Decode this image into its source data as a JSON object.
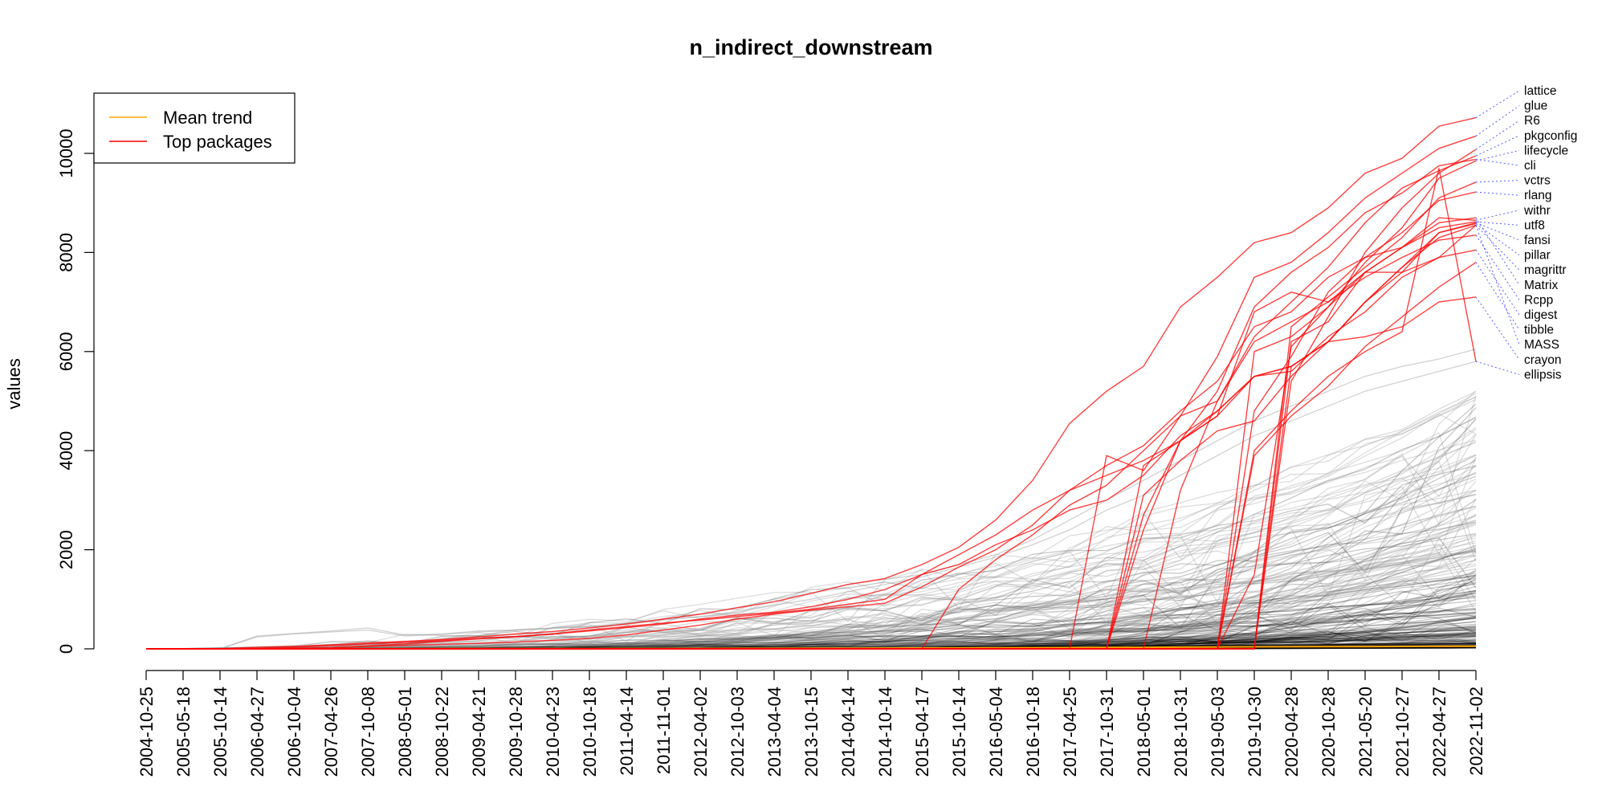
{
  "chart_data": {
    "type": "line",
    "title": "n_indirect_downstream",
    "xlabel": "",
    "ylabel": "values",
    "ylim": [
      0,
      10700
    ],
    "y_ticks": [
      "0",
      "2000",
      "4000",
      "6000",
      "8000",
      "10000"
    ],
    "x": [
      "2004-10-25",
      "2005-05-18",
      "2005-10-14",
      "2006-04-27",
      "2006-10-04",
      "2007-04-26",
      "2007-10-08",
      "2008-05-01",
      "2008-10-22",
      "2009-04-21",
      "2009-10-28",
      "2010-04-23",
      "2010-10-18",
      "2011-04-14",
      "2011-11-01",
      "2012-04-02",
      "2012-10-03",
      "2013-04-04",
      "2013-10-15",
      "2014-04-14",
      "2014-10-14",
      "2015-04-17",
      "2015-10-14",
      "2016-05-04",
      "2016-10-18",
      "2017-04-25",
      "2017-10-31",
      "2018-05-01",
      "2018-10-31",
      "2019-05-03",
      "2019-10-30",
      "2020-04-28",
      "2020-10-28",
      "2021-05-20",
      "2021-10-27",
      "2022-04-27",
      "2022-11-02"
    ],
    "legend": {
      "position": "top-left",
      "entries": [
        {
          "label": "Mean trend",
          "color": "#ffa500"
        },
        {
          "label": "Top packages",
          "color": "#ff0000"
        }
      ]
    },
    "colors": {
      "top": "#ff0000",
      "mean": "#ffa500",
      "background": "#000000",
      "connector": "#4040ff"
    },
    "mean_trend": [
      0,
      0,
      0,
      1,
      1,
      2,
      2,
      2,
      3,
      3,
      4,
      4,
      5,
      6,
      7,
      8,
      9,
      10,
      11,
      13,
      14,
      16,
      18,
      20,
      22,
      25,
      28,
      31,
      34,
      37,
      40,
      42,
      44,
      46,
      48,
      50,
      52
    ],
    "series": [
      {
        "name": "lattice",
        "values": [
          0,
          0,
          0,
          30,
          50,
          80,
          120,
          150,
          190,
          240,
          300,
          350,
          420,
          500,
          600,
          700,
          830,
          950,
          1120,
          1300,
          1420,
          1700,
          2050,
          2600,
          3400,
          4550,
          5200,
          5700,
          6900,
          7500,
          8200,
          8400,
          8900,
          9600,
          9900,
          10550,
          10720
        ]
      },
      {
        "name": "glue",
        "values": [
          0,
          0,
          0,
          0,
          0,
          0,
          0,
          0,
          0,
          0,
          0,
          0,
          0,
          0,
          0,
          0,
          0,
          0,
          0,
          0,
          0,
          0,
          0,
          0,
          0,
          0,
          3900,
          3600,
          4700,
          5900,
          7500,
          7800,
          8400,
          9100,
          9600,
          10100,
          10350
        ]
      },
      {
        "name": "R6",
        "values": [
          0,
          0,
          0,
          0,
          0,
          0,
          0,
          0,
          0,
          0,
          0,
          0,
          0,
          0,
          0,
          0,
          0,
          0,
          0,
          0,
          0,
          0,
          0,
          0,
          0,
          0,
          0,
          0,
          0,
          0,
          0,
          5400,
          6700,
          8000,
          8900,
          9600,
          10080
        ]
      },
      {
        "name": "pkgconfig",
        "values": [
          0,
          0,
          0,
          0,
          0,
          0,
          0,
          0,
          0,
          0,
          0,
          0,
          0,
          0,
          0,
          0,
          0,
          0,
          0,
          0,
          0,
          0,
          0,
          0,
          0,
          0,
          0,
          0,
          3200,
          5000,
          6300,
          7000,
          7700,
          8600,
          9300,
          9650,
          9950
        ]
      },
      {
        "name": "lifecycle",
        "values": [
          0,
          0,
          0,
          0,
          0,
          0,
          0,
          0,
          0,
          0,
          0,
          0,
          0,
          0,
          0,
          0,
          0,
          0,
          0,
          0,
          0,
          0,
          0,
          0,
          0,
          0,
          0,
          0,
          0,
          0,
          1500,
          6100,
          6900,
          7800,
          8500,
          9500,
          9850
        ]
      },
      {
        "name": "cli",
        "values": [
          0,
          0,
          0,
          0,
          0,
          0,
          0,
          0,
          0,
          0,
          0,
          0,
          0,
          0,
          0,
          0,
          0,
          0,
          0,
          0,
          0,
          0,
          0,
          0,
          0,
          0,
          0,
          2700,
          4200,
          5200,
          6900,
          7600,
          8100,
          8800,
          9200,
          9750,
          9880
        ]
      },
      {
        "name": "vctrs",
        "values": [
          0,
          0,
          0,
          0,
          0,
          0,
          0,
          0,
          0,
          0,
          0,
          0,
          0,
          0,
          0,
          0,
          0,
          0,
          0,
          0,
          0,
          0,
          0,
          0,
          0,
          0,
          0,
          0,
          0,
          0,
          0,
          6500,
          7100,
          7700,
          8300,
          9100,
          9420
        ]
      },
      {
        "name": "rlang",
        "values": [
          0,
          0,
          0,
          0,
          0,
          0,
          0,
          0,
          0,
          0,
          0,
          0,
          0,
          0,
          0,
          0,
          0,
          0,
          0,
          0,
          0,
          0,
          0,
          0,
          0,
          0,
          0,
          0,
          0,
          0,
          4800,
          5900,
          7200,
          7900,
          8400,
          9050,
          9220
        ]
      },
      {
        "name": "withr",
        "values": [
          0,
          0,
          0,
          0,
          0,
          0,
          0,
          0,
          0,
          0,
          0,
          0,
          0,
          0,
          0,
          0,
          0,
          0,
          0,
          0,
          0,
          0,
          0,
          0,
          0,
          0,
          0,
          0,
          0,
          0,
          0,
          6200,
          6600,
          7600,
          8100,
          8700,
          8650
        ]
      },
      {
        "name": "utf8",
        "values": [
          0,
          0,
          0,
          0,
          0,
          0,
          0,
          0,
          0,
          0,
          0,
          0,
          0,
          0,
          0,
          0,
          0,
          0,
          0,
          0,
          0,
          0,
          0,
          0,
          0,
          0,
          0,
          0,
          0,
          0,
          6000,
          6300,
          6900,
          7600,
          8100,
          8500,
          8620
        ]
      },
      {
        "name": "fansi",
        "values": [
          0,
          0,
          0,
          0,
          0,
          0,
          0,
          0,
          0,
          0,
          0,
          0,
          0,
          0,
          0,
          0,
          0,
          0,
          0,
          0,
          0,
          0,
          0,
          0,
          0,
          0,
          0,
          0,
          0,
          0,
          0,
          5700,
          6200,
          7000,
          7700,
          8400,
          8600
        ]
      },
      {
        "name": "pillar",
        "values": [
          0,
          0,
          0,
          0,
          0,
          0,
          0,
          0,
          0,
          0,
          0,
          0,
          0,
          0,
          0,
          0,
          0,
          0,
          0,
          0,
          0,
          0,
          0,
          0,
          0,
          0,
          0,
          2400,
          4200,
          4700,
          5500,
          5700,
          6200,
          7000,
          7600,
          8400,
          8580
        ]
      },
      {
        "name": "magrittr",
        "values": [
          0,
          0,
          0,
          0,
          0,
          0,
          0,
          0,
          0,
          0,
          0,
          0,
          0,
          0,
          0,
          0,
          0,
          0,
          0,
          0,
          0,
          0,
          0,
          0,
          0,
          0,
          0,
          3700,
          4200,
          4800,
          5500,
          5700,
          6200,
          7000,
          7700,
          8300,
          8550
        ]
      },
      {
        "name": "Matrix",
        "values": [
          0,
          0,
          0,
          0,
          5,
          20,
          50,
          70,
          90,
          110,
          140,
          170,
          210,
          280,
          380,
          480,
          600,
          700,
          780,
          850,
          920,
          1250,
          1650,
          2000,
          2500,
          3200,
          3700,
          4100,
          4800,
          5400,
          6500,
          6800,
          7500,
          7900,
          8100,
          8600,
          8700
        ]
      },
      {
        "name": "Rcpp",
        "values": [
          0,
          0,
          0,
          0,
          0,
          0,
          0,
          0,
          0,
          0,
          0,
          0,
          0,
          0,
          0,
          0,
          0,
          0,
          0,
          0,
          0,
          0,
          1200,
          1800,
          2300,
          2900,
          3300,
          4000,
          4700,
          5000,
          6200,
          6600,
          7000,
          7500,
          7900,
          8250,
          8350
        ]
      },
      {
        "name": "digest",
        "values": [
          0,
          0,
          0,
          0,
          5,
          20,
          60,
          100,
          150,
          200,
          240,
          300,
          380,
          450,
          520,
          580,
          650,
          720,
          800,
          900,
          1000,
          1500,
          1900,
          2300,
          2800,
          3200,
          3500,
          3800,
          4200,
          4700,
          6800,
          7200,
          7000,
          7600,
          7600,
          7900,
          8050
        ]
      },
      {
        "name": "tibble",
        "values": [
          0,
          0,
          0,
          0,
          0,
          0,
          0,
          0,
          0,
          0,
          0,
          0,
          0,
          0,
          0,
          0,
          0,
          0,
          0,
          0,
          0,
          0,
          0,
          0,
          0,
          0,
          0,
          0,
          0,
          0,
          3900,
          4700,
          5300,
          6100,
          6700,
          7300,
          7800
        ]
      },
      {
        "name": "MASS",
        "values": [
          0,
          0,
          0,
          5,
          30,
          60,
          100,
          130,
          170,
          210,
          250,
          300,
          360,
          430,
          500,
          600,
          680,
          740,
          850,
          1000,
          1200,
          1500,
          1700,
          2100,
          2400,
          2800,
          3000,
          3500,
          4300,
          4800,
          5500,
          5600,
          6300,
          6800,
          7500,
          7900,
          8550
        ]
      },
      {
        "name": "crayon",
        "values": [
          0,
          0,
          0,
          0,
          0,
          0,
          0,
          0,
          0,
          0,
          0,
          0,
          0,
          0,
          0,
          0,
          0,
          0,
          0,
          0,
          0,
          0,
          0,
          0,
          0,
          0,
          0,
          3100,
          3800,
          4400,
          4600,
          5500,
          6200,
          6300,
          6500,
          7000,
          7100
        ]
      },
      {
        "name": "ellipsis",
        "values": [
          0,
          0,
          0,
          0,
          0,
          0,
          0,
          0,
          0,
          0,
          0,
          0,
          0,
          0,
          0,
          0,
          0,
          0,
          0,
          0,
          0,
          0,
          0,
          0,
          0,
          0,
          0,
          0,
          0,
          0,
          4000,
          4800,
          5500,
          6000,
          6400,
          9700,
          5800
        ]
      }
    ]
  }
}
